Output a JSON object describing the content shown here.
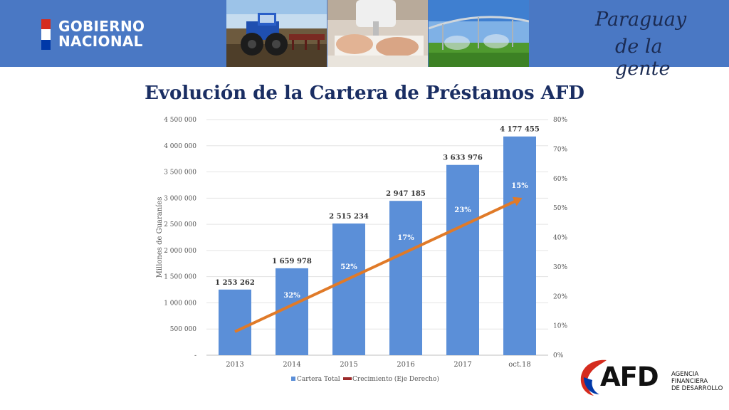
{
  "header": {
    "logo_left": [
      "GOBIERNO",
      "NACIONAL"
    ],
    "slogan": [
      "Paraguay",
      "de la gente"
    ],
    "photos": [
      "tractor-photo",
      "sewing-photo",
      "irrigation-photo"
    ]
  },
  "footer_logo": {
    "name": "AFD",
    "subtitle": [
      "AGENCIA",
      "FINANCIERA",
      "DE DESARROLLO"
    ]
  },
  "colors": {
    "header_bg": "#4a78c4",
    "bar": "#5b8fd8",
    "line": "#e07a28",
    "legend_line": "#9c2a2a",
    "title": "#1a2e63"
  },
  "chart_data": {
    "type": "bar",
    "title": "Evolución de la Cartera de Préstamos AFD",
    "categories": [
      "2013",
      "2014",
      "2015",
      "2016",
      "2017",
      "oct.18"
    ],
    "ylabel": "Millones de Guaraníes",
    "ylim": [
      0,
      4500000
    ],
    "y_ticks": [
      "-",
      "500 000",
      "1 000 000",
      "1 500 000",
      "2 000 000",
      "2 500 000",
      "3 000 000",
      "3 500 000",
      "4 000 000",
      "4 500 000"
    ],
    "y2lim": [
      0,
      80
    ],
    "y2_ticks": [
      "0%",
      "10%",
      "20%",
      "30%",
      "40%",
      "50%",
      "60%",
      "70%",
      "80%"
    ],
    "grid": true,
    "legend_position": "bottom",
    "series": [
      {
        "name": "Cartera Total",
        "type": "bar",
        "axis": "left",
        "values": [
          1253262,
          1659978,
          2515234,
          2947185,
          3633976,
          4177455
        ],
        "labels": [
          "1 253 262",
          "1 659 978",
          "2 515 234",
          "2 947 185",
          "3 633 976",
          "4 177 455"
        ]
      },
      {
        "name": "Crecimiento (Eje Derecho)",
        "type": "label",
        "axis": "right",
        "values": [
          null,
          32,
          52,
          17,
          23,
          15
        ],
        "labels": [
          "",
          "32%",
          "52%",
          "17%",
          "23%",
          "15%"
        ]
      }
    ],
    "trend_line": {
      "axis": "right",
      "start": [
        0,
        8
      ],
      "end": [
        5,
        53
      ]
    }
  }
}
